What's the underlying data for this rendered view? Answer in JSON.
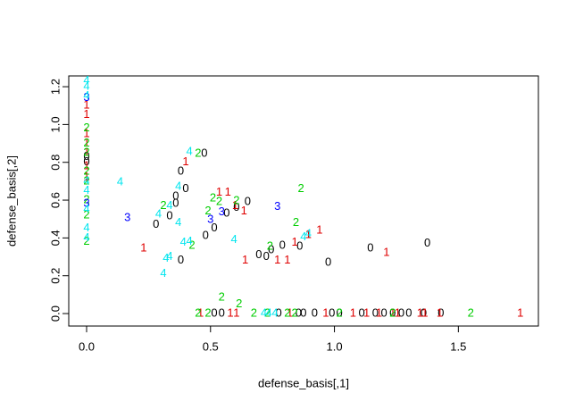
{
  "chart_data": {
    "type": "scatter",
    "xlabel": "defense_basis[,1]",
    "ylabel": "defense_basis[,2]",
    "xlim": [
      -0.072,
      1.823
    ],
    "ylim": [
      -0.066,
      1.257
    ],
    "xticks": [
      {
        "value": 0,
        "label": "0.0"
      },
      {
        "value": 0.5,
        "label": "0.5"
      },
      {
        "value": 1,
        "label": "1.0"
      },
      {
        "value": 1.5,
        "label": "1.5"
      }
    ],
    "yticks": [
      {
        "value": 0,
        "label": "0.0"
      },
      {
        "value": 0.2,
        "label": "0.2"
      },
      {
        "value": 0.4,
        "label": "0.4"
      },
      {
        "value": 0.6,
        "label": "0.6"
      },
      {
        "value": 0.8,
        "label": "0.8"
      },
      {
        "value": 1,
        "label": "1.0"
      },
      {
        "value": 1.2,
        "label": "1.2"
      }
    ],
    "series": [
      {
        "name": "0",
        "color": "#000000",
        "x": [
          0,
          0,
          0.28,
          0.335,
          0.36,
          0.36,
          0.38,
          0.4,
          0.475,
          0.38,
          0.48,
          0.515,
          0.565,
          0.605,
          0.65,
          0.695,
          0.725,
          0.745,
          0.79,
          0.86,
          0.975,
          1.145,
          1.375,
          0.515,
          0.545,
          0.775,
          0.855,
          0.875,
          0.92,
          0.99,
          1.02,
          1.11,
          1.165,
          1.2,
          1.235,
          1.27,
          1.3,
          1.36,
          1.43
        ],
        "y": [
          0.83,
          0.8,
          0.47,
          0.515,
          0.58,
          0.62,
          0.75,
          0.66,
          0.845,
          0.28,
          0.41,
          0.45,
          0.53,
          0.56,
          0.59,
          0.31,
          0.3,
          0.335,
          0.36,
          0.355,
          0.27,
          0.345,
          0.37,
          0,
          0,
          0,
          0,
          0,
          0,
          0,
          0,
          0,
          0,
          0,
          0,
          0,
          0,
          0,
          0
        ]
      },
      {
        "name": "1",
        "color": "#df0000",
        "x": [
          0,
          0,
          0,
          0,
          0,
          0,
          0,
          0.23,
          0.4,
          0.535,
          0.57,
          0.6,
          0.635,
          0.64,
          0.77,
          0.81,
          0.84,
          0.895,
          0.94,
          1.21,
          0.46,
          0.58,
          0.605,
          0.82,
          0.965,
          1.075,
          1.13,
          1.18,
          1.235,
          1.255,
          1.345,
          1.365,
          1.425,
          1.75
        ],
        "y": [
          1.1,
          1.05,
          0.95,
          0.9,
          0.85,
          0.78,
          0.72,
          0.345,
          0.8,
          0.64,
          0.64,
          0.57,
          0.54,
          0.28,
          0.28,
          0.28,
          0.375,
          0.415,
          0.44,
          0.32,
          0,
          0,
          0,
          0,
          0,
          0,
          0,
          0,
          0,
          0,
          0,
          0,
          0,
          0
        ]
      },
      {
        "name": "2",
        "color": "#00cd00",
        "x": [
          0,
          0,
          0,
          0,
          0,
          0,
          0,
          0,
          0.425,
          0.45,
          0.31,
          0.49,
          0.51,
          0.535,
          0.605,
          0.865,
          0.845,
          0.74,
          0.545,
          0.615,
          0.45,
          0.49,
          0.675,
          0.73,
          0.81,
          0.84,
          1.02,
          1.235,
          1.55
        ],
        "y": [
          0.38,
          0.52,
          0.6,
          0.7,
          0.75,
          0.85,
          0.98,
          0.9,
          0.36,
          0.845,
          0.57,
          0.54,
          0.61,
          0.59,
          0.595,
          0.66,
          0.48,
          0.355,
          0.085,
          0.05,
          0,
          0,
          0,
          0,
          0,
          0,
          0,
          0,
          0
        ]
      },
      {
        "name": "3",
        "color": "#0000ff",
        "x": [
          0,
          0,
          0.165,
          0.77,
          0.5,
          0.545
        ],
        "y": [
          1.14,
          0.58,
          0.505,
          0.565,
          0.495,
          0.535
        ]
      },
      {
        "name": "4",
        "color": "#00e5ee",
        "x": [
          0,
          0,
          0,
          0,
          0,
          0,
          0,
          0,
          0.135,
          0.31,
          0.32,
          0.335,
          0.29,
          0.335,
          0.37,
          0.37,
          0.415,
          0.39,
          0.415,
          0.595,
          0.875,
          0.895,
          0.715,
          0.735,
          0.76
        ],
        "y": [
          1.23,
          1.2,
          1.15,
          0.7,
          0.65,
          0.55,
          0.45,
          0.4,
          0.695,
          0.21,
          0.29,
          0.3,
          0.525,
          0.57,
          0.67,
          0.48,
          0.855,
          0.375,
          0.38,
          0.39,
          0.405,
          0.42,
          0,
          0,
          0
        ]
      }
    ]
  }
}
